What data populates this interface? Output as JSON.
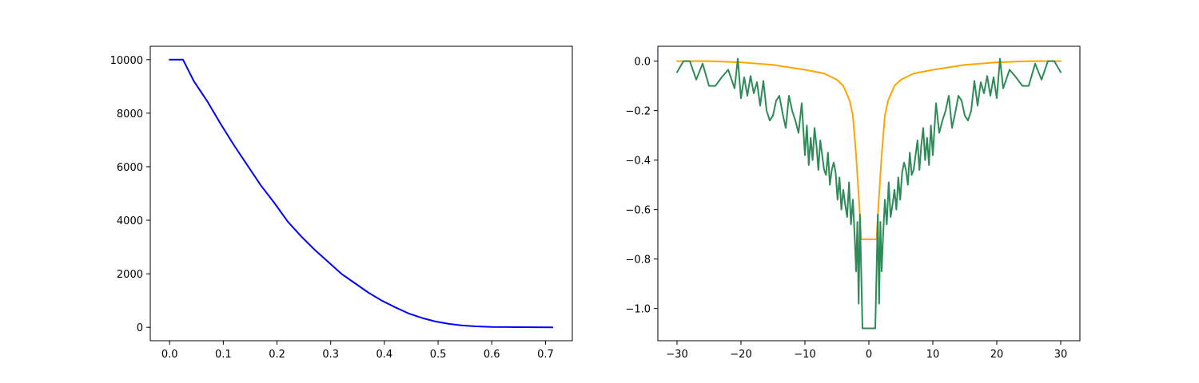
{
  "chart_data": [
    {
      "type": "line",
      "title": "",
      "xlabel": "",
      "ylabel": "",
      "xlim": [
        -0.036,
        0.75
      ],
      "ylim": [
        -500,
        10500
      ],
      "grid": false,
      "xticks": [
        0.0,
        0.1,
        0.2,
        0.3,
        0.4,
        0.5,
        0.6,
        0.7
      ],
      "xtick_labels": [
        "0.0",
        "0.1",
        "0.2",
        "0.3",
        "0.4",
        "0.5",
        "0.6",
        "0.7"
      ],
      "yticks": [
        0,
        2000,
        4000,
        6000,
        8000,
        10000
      ],
      "ytick_labels": [
        "0",
        "2000",
        "4000",
        "6000",
        "8000",
        "10000"
      ],
      "series": [
        {
          "color": "#0000ff",
          "x": [
            0.0,
            0.025,
            0.045,
            0.07,
            0.095,
            0.12,
            0.145,
            0.17,
            0.195,
            0.22,
            0.245,
            0.27,
            0.295,
            0.32,
            0.345,
            0.37,
            0.395,
            0.42,
            0.445,
            0.47,
            0.495,
            0.52,
            0.545,
            0.57,
            0.6,
            0.65,
            0.713
          ],
          "y": [
            10000,
            10000,
            9200,
            8450,
            7600,
            6800,
            6050,
            5300,
            4650,
            3950,
            3400,
            2900,
            2450,
            2000,
            1650,
            1300,
            1000,
            750,
            520,
            350,
            220,
            130,
            70,
            35,
            15,
            5,
            0
          ]
        }
      ]
    },
    {
      "type": "line",
      "title": "",
      "xlabel": "",
      "ylabel": "",
      "xlim": [
        -33,
        33
      ],
      "ylim": [
        -1.13,
        0.06
      ],
      "grid": false,
      "xticks": [
        -30,
        -20,
        -10,
        0,
        10,
        20,
        30
      ],
      "xtick_labels": [
        "−30",
        "−20",
        "−10",
        "0",
        "10",
        "20",
        "30"
      ],
      "yticks": [
        0.0,
        -0.2,
        -0.4,
        -0.6,
        -0.8,
        -1.0
      ],
      "ytick_labels": [
        "0.0",
        "−0.2",
        "−0.4",
        "−0.6",
        "−0.8",
        "−1.0"
      ],
      "series": [
        {
          "color": "#ffa500",
          "x": [
            -30,
            -25,
            -20,
            -15,
            -10,
            -7,
            -5,
            -4,
            -3,
            -2.5,
            -2,
            -1.5,
            -1.2,
            -1,
            0,
            1,
            1.2,
            1.5,
            2,
            2.5,
            3,
            4,
            5,
            7,
            10,
            15,
            20,
            25,
            30
          ],
          "y": [
            0.0,
            0.0,
            -0.005,
            -0.015,
            -0.035,
            -0.05,
            -0.075,
            -0.1,
            -0.16,
            -0.22,
            -0.38,
            -0.58,
            -0.72,
            -0.72,
            -0.72,
            -0.72,
            -0.72,
            -0.58,
            -0.38,
            -0.22,
            -0.16,
            -0.1,
            -0.075,
            -0.05,
            -0.035,
            -0.015,
            -0.005,
            0.0,
            0.0
          ]
        },
        {
          "color": "#2e8b57",
          "x": [
            -30,
            -29,
            -28,
            -27,
            -26,
            -25,
            -24,
            -23,
            -22,
            -21,
            -20.5,
            -20,
            -19.5,
            -19,
            -18.5,
            -18,
            -17.5,
            -17,
            -16.5,
            -16,
            -15.5,
            -15,
            -14.5,
            -14,
            -13.5,
            -13,
            -12.5,
            -12,
            -11.5,
            -11,
            -10.5,
            -10,
            -9.7,
            -9.4,
            -9.1,
            -8.8,
            -8.5,
            -8.2,
            -7.9,
            -7.6,
            -7.3,
            -7,
            -6.7,
            -6.4,
            -6.1,
            -5.8,
            -5.5,
            -5.2,
            -4.9,
            -4.6,
            -4.3,
            -4,
            -3.7,
            -3.4,
            -3.1,
            -2.8,
            -2.5,
            -2.2,
            -2,
            -1.8,
            -1.6,
            -1.4,
            -1.2,
            -1,
            0,
            1,
            1.2,
            1.4,
            1.6,
            1.8,
            2,
            2.2,
            2.5,
            2.8,
            3.1,
            3.4,
            3.7,
            4,
            4.3,
            4.6,
            4.9,
            5.2,
            5.5,
            5.8,
            6.1,
            6.4,
            6.7,
            7,
            7.3,
            7.6,
            7.9,
            8.2,
            8.5,
            8.8,
            9.1,
            9.4,
            9.7,
            10,
            10.5,
            11,
            11.5,
            12,
            12.5,
            13,
            13.5,
            14,
            14.5,
            15,
            15.5,
            16,
            16.5,
            17,
            17.5,
            18,
            18.5,
            19,
            19.5,
            20,
            20.5,
            21,
            22,
            23,
            24,
            25,
            26,
            27,
            28,
            29,
            30
          ],
          "y": [
            -0.045,
            0.0,
            0.0,
            -0.075,
            -0.01,
            -0.1,
            -0.1,
            -0.065,
            -0.035,
            -0.11,
            0.01,
            -0.15,
            -0.065,
            -0.14,
            -0.06,
            -0.13,
            -0.085,
            -0.18,
            -0.08,
            -0.2,
            -0.24,
            -0.22,
            -0.16,
            -0.14,
            -0.21,
            -0.27,
            -0.14,
            -0.2,
            -0.24,
            -0.29,
            -0.17,
            -0.38,
            -0.26,
            -0.42,
            -0.31,
            -0.4,
            -0.27,
            -0.34,
            -0.44,
            -0.32,
            -0.38,
            -0.44,
            -0.46,
            -0.37,
            -0.5,
            -0.44,
            -0.41,
            -0.45,
            -0.56,
            -0.47,
            -0.6,
            -0.52,
            -0.58,
            -0.63,
            -0.49,
            -0.66,
            -0.56,
            -0.72,
            -0.85,
            -0.65,
            -0.98,
            -0.62,
            -0.85,
            -1.08,
            -1.08,
            -1.08,
            -0.85,
            -0.62,
            -0.98,
            -0.65,
            -0.85,
            -0.72,
            -0.56,
            -0.66,
            -0.49,
            -0.63,
            -0.58,
            -0.52,
            -0.6,
            -0.47,
            -0.56,
            -0.45,
            -0.41,
            -0.44,
            -0.5,
            -0.37,
            -0.46,
            -0.44,
            -0.38,
            -0.32,
            -0.44,
            -0.34,
            -0.27,
            -0.4,
            -0.31,
            -0.42,
            -0.26,
            -0.38,
            -0.17,
            -0.29,
            -0.24,
            -0.2,
            -0.14,
            -0.27,
            -0.21,
            -0.14,
            -0.16,
            -0.22,
            -0.24,
            -0.2,
            -0.08,
            -0.18,
            -0.085,
            -0.13,
            -0.06,
            -0.14,
            -0.065,
            -0.15,
            0.01,
            -0.11,
            -0.035,
            -0.065,
            -0.1,
            -0.1,
            -0.01,
            -0.075,
            0.0,
            0.0,
            -0.045
          ]
        }
      ]
    }
  ]
}
